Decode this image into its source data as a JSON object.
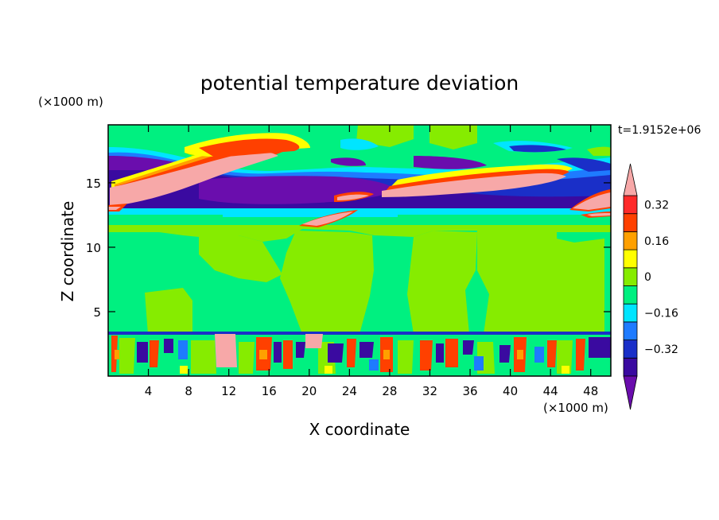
{
  "chart_data": {
    "type": "heatmap",
    "title": "potential temperature deviation",
    "xlabel": "X coordinate",
    "ylabel": "Z coordinate",
    "x_unit_label": "(×1000 m)",
    "y_unit_label": "(×1000 m)",
    "time_label": "t=1.9152e+06",
    "xlim": [
      0,
      50
    ],
    "ylim": [
      0,
      19.5
    ],
    "x_ticks": [
      4,
      8,
      12,
      16,
      20,
      24,
      28,
      32,
      36,
      40,
      44,
      48
    ],
    "y_ticks": [
      5,
      10,
      15
    ],
    "colorbar": {
      "levels": [
        -0.4,
        -0.32,
        -0.24,
        -0.16,
        -0.08,
        0,
        0.08,
        0.16,
        0.24,
        0.32,
        0.4
      ],
      "tick_labels": [
        {
          "value": 0.32,
          "label": "0.32"
        },
        {
          "value": 0.16,
          "label": "0.16"
        },
        {
          "value": 0,
          "label": "0"
        },
        {
          "value": -0.16,
          "label": "−0.16"
        },
        {
          "value": -0.32,
          "label": "−0.32"
        }
      ],
      "colors": [
        "#6a0dad",
        "#3a0aa0",
        "#1a2fc8",
        "#1e7bff",
        "#00e5ff",
        "#00f080",
        "#86ec00",
        "#ffff00",
        "#ffa000",
        "#ff4000",
        "#ff2a2a",
        "#f7a8a8"
      ]
    },
    "regions": [
      {
        "level": "-0.4",
        "desc": "stratospheric purple band"
      },
      {
        "level": "0.4+",
        "desc": "pink warm tongues near z=13-17"
      },
      {
        "level": "mixed",
        "desc": "turbulent boundary layer below z=3.5"
      }
    ]
  }
}
